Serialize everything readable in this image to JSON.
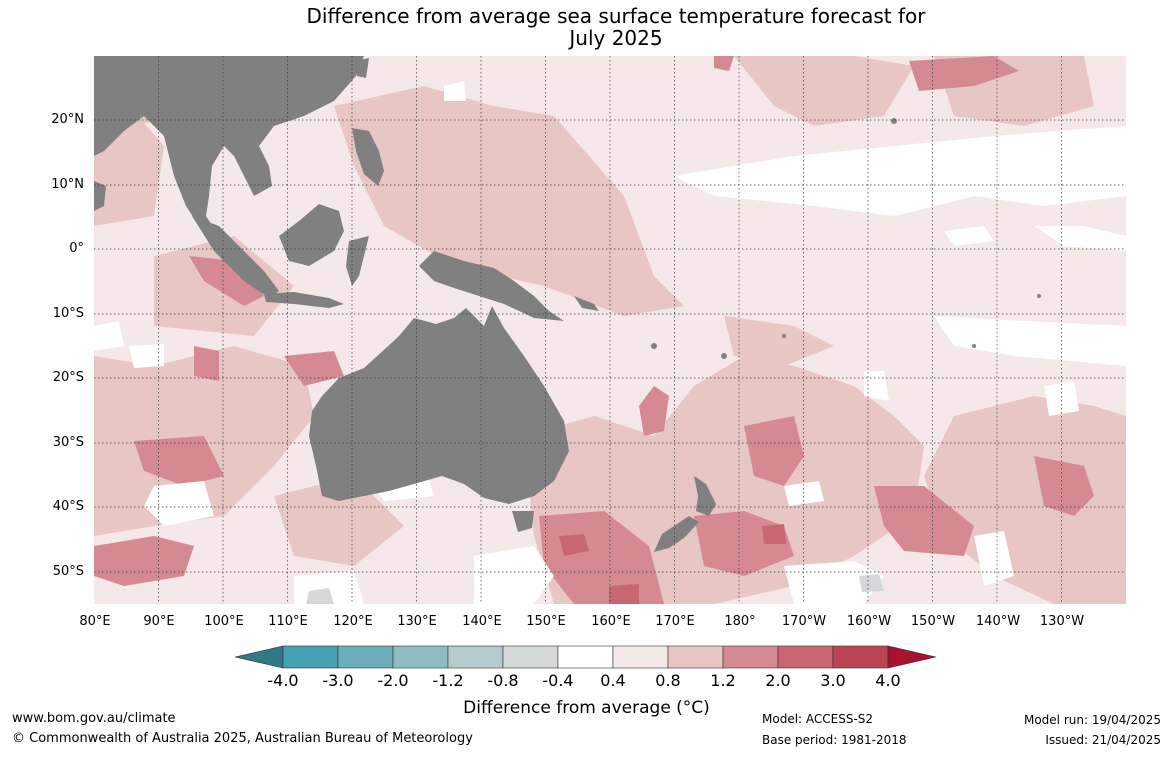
{
  "title_line1": "Difference from average sea surface temperature forecast for",
  "title_line2": "July 2025",
  "lat_labels": [
    "20°N",
    "10°N",
    "0°",
    "10°S",
    "20°S",
    "30°S",
    "40°S",
    "50°S"
  ],
  "lon_labels": [
    "80°E",
    "90°E",
    "100°E",
    "110°E",
    "120°E",
    "130°E",
    "140°E",
    "150°E",
    "160°E",
    "170°E",
    "180°",
    "170°W",
    "160°W",
    "150°W",
    "140°W",
    "130°W"
  ],
  "colorbar": {
    "ticks": [
      "-4.0",
      "-3.0",
      "-2.0",
      "-1.2",
      "-0.8",
      "-0.4",
      "0.4",
      "0.8",
      "1.2",
      "2.0",
      "3.0",
      "4.0"
    ],
    "colors": [
      "#2f7a84",
      "#45a2b2",
      "#6aaeba",
      "#8fbcc2",
      "#b4cccd",
      "#d4d8d8",
      "#ffffff",
      "#f4e9e8",
      "#e8c6c4",
      "#d58a92",
      "#c86672",
      "#bd4551",
      "#a8122e"
    ],
    "title": "Difference from average (°C)"
  },
  "colors": {
    "land": "#808080",
    "background": "#f4e9e8"
  },
  "footer": {
    "url": "www.bom.gov.au/climate",
    "copyright": "© Commonwealth of Australia 2025, Australian Bureau of Meteorology",
    "model": "Model: ACCESS-S2",
    "base_period": "Base period: 1981-2018",
    "model_run": "Model run: 19/04/2025",
    "issued": "Issued: 21/04/2025"
  }
}
